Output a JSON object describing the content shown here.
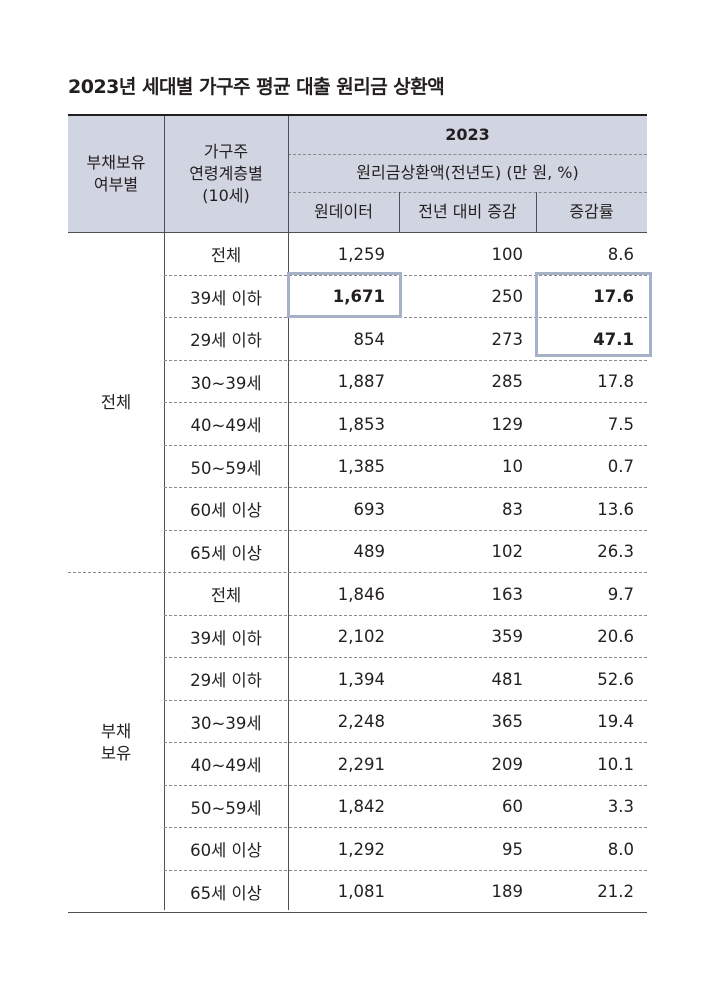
{
  "title": "2023년 세대별 가구주 평균 대출 원리금 상환액",
  "header": {
    "col1": "부채보유\n여부별",
    "col2": "가구주\n연령계층별\n(10세)",
    "year": "2023",
    "sub": "원리금상환액(전년도) (만 원, %)",
    "c3": "원데이터",
    "c4": "전년 대비 증감",
    "c5": "증감률"
  },
  "groups": [
    {
      "label": "전체",
      "rows": [
        {
          "age": "전체",
          "value": "1,259",
          "change": "100",
          "rate": "8.6"
        },
        {
          "age": "39세 이하",
          "value": "1,671",
          "change": "250",
          "rate": "17.6"
        },
        {
          "age": "29세 이하",
          "value": "854",
          "change": "273",
          "rate": "47.1"
        },
        {
          "age": "30~39세",
          "value": "1,887",
          "change": "285",
          "rate": "17.8"
        },
        {
          "age": "40~49세",
          "value": "1,853",
          "change": "129",
          "rate": "7.5"
        },
        {
          "age": "50~59세",
          "value": "1,385",
          "change": "10",
          "rate": "0.7"
        },
        {
          "age": "60세 이상",
          "value": "693",
          "change": "83",
          "rate": "13.6"
        },
        {
          "age": "65세 이상",
          "value": "489",
          "change": "102",
          "rate": "26.3"
        }
      ]
    },
    {
      "label": "부채\n보유",
      "rows": [
        {
          "age": "전체",
          "value": "1,846",
          "change": "163",
          "rate": "9.7"
        },
        {
          "age": "39세 이하",
          "value": "2,102",
          "change": "359",
          "rate": "20.6"
        },
        {
          "age": "29세 이하",
          "value": "1,394",
          "change": "481",
          "rate": "52.6"
        },
        {
          "age": "30~39세",
          "value": "2,248",
          "change": "365",
          "rate": "19.4"
        },
        {
          "age": "40~49세",
          "value": "2,291",
          "change": "209",
          "rate": "10.1"
        },
        {
          "age": "50~59세",
          "value": "1,842",
          "change": "60",
          "rate": "3.3"
        },
        {
          "age": "60세 이상",
          "value": "1,292",
          "change": "95",
          "rate": "8.0"
        },
        {
          "age": "65세 이상",
          "value": "1,081",
          "change": "189",
          "rate": "21.2"
        }
      ]
    }
  ],
  "highlight_color": "#a6b1c8",
  "header_bg": "#d1d5e1"
}
